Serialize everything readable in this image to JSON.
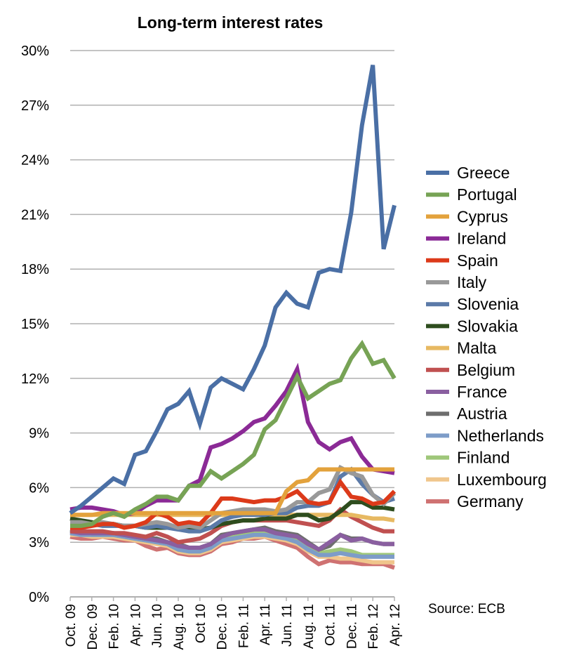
{
  "chart_data": {
    "type": "line",
    "title": "Long-term interest rates",
    "source_note": "Source: ECB",
    "ylim": [
      0,
      30
    ],
    "yticks": [
      0,
      3,
      6,
      9,
      12,
      15,
      18,
      21,
      24,
      27,
      30
    ],
    "ytick_labels": [
      "0%",
      "3%",
      "6%",
      "9%",
      "12%",
      "15%",
      "18%",
      "21%",
      "24%",
      "27%",
      "30%"
    ],
    "grid": "horizontal",
    "legend_position": "right",
    "x": [
      "Oct. 09",
      "Nov. 09",
      "Dec. 09",
      "Jan. 10",
      "Feb. 10",
      "Mar. 10",
      "Apr. 10",
      "May 10",
      "Jun. 10",
      "Jul. 10",
      "Aug. 10",
      "Sep. 10",
      "Oct. 10",
      "Nov. 10",
      "Dec. 10",
      "Jan. 11",
      "Feb. 11",
      "Mar. 11",
      "Apr. 11",
      "May 11",
      "Jun. 11",
      "Jul. 11",
      "Aug. 11",
      "Sep. 11",
      "Oct. 11",
      "Nov. 11",
      "Dec. 11",
      "Jan. 12",
      "Feb. 12",
      "Mar. 12",
      "Apr. 12"
    ],
    "xtick_labels": [
      "Oct. 09",
      "Dec. 09",
      "Feb. 10",
      "Apr. 10",
      "Jun. 10",
      "Aug. 10",
      "Oct 10",
      "Dec. 10",
      "Feb. 11",
      "Apr. 11",
      "Jun. 11",
      "Aug. 11",
      "Oct. 11",
      "Dec. 11",
      "Feb. 12",
      "Apr. 12"
    ],
    "series": [
      {
        "name": "Greece",
        "color": "#4a6fa5",
        "values": [
          4.6,
          5.0,
          5.5,
          6.0,
          6.5,
          6.2,
          7.8,
          8.0,
          9.1,
          10.3,
          10.6,
          11.3,
          9.5,
          11.5,
          12.0,
          11.7,
          11.4,
          12.5,
          13.8,
          15.9,
          16.7,
          16.1,
          15.9,
          17.8,
          18.0,
          17.9,
          21.1,
          25.9,
          29.2,
          19.1,
          21.5
        ]
      },
      {
        "name": "Portugal",
        "color": "#77a355",
        "values": [
          3.9,
          3.9,
          4.0,
          4.4,
          4.6,
          4.4,
          4.8,
          5.1,
          5.5,
          5.5,
          5.3,
          6.1,
          6.1,
          6.9,
          6.5,
          6.9,
          7.3,
          7.8,
          9.2,
          9.7,
          10.9,
          12.1,
          10.9,
          11.3,
          11.7,
          11.9,
          13.1,
          13.9,
          12.8,
          13.0,
          12.0
        ]
      },
      {
        "name": "Cyprus",
        "color": "#e3a23c",
        "values": [
          4.5,
          4.5,
          4.5,
          4.6,
          4.6,
          4.6,
          4.6,
          4.6,
          4.6,
          4.6,
          4.6,
          4.6,
          4.6,
          4.6,
          4.6,
          4.6,
          4.6,
          4.6,
          4.6,
          4.6,
          5.8,
          6.3,
          6.4,
          7.0,
          7.0,
          7.0,
          7.0,
          7.0,
          7.0,
          7.0,
          7.0
        ]
      },
      {
        "name": "Ireland",
        "color": "#8b2a96",
        "values": [
          4.8,
          4.9,
          4.9,
          4.8,
          4.7,
          4.5,
          4.6,
          5.0,
          5.3,
          5.3,
          5.3,
          6.1,
          6.4,
          8.2,
          8.4,
          8.7,
          9.1,
          9.6,
          9.8,
          10.5,
          11.3,
          12.5,
          9.6,
          8.5,
          8.1,
          8.5,
          8.7,
          7.7,
          7.0,
          6.9,
          6.8
        ]
      },
      {
        "name": "Spain",
        "color": "#dc3a1a",
        "values": [
          3.8,
          3.8,
          3.9,
          4.0,
          4.0,
          3.8,
          3.9,
          4.1,
          4.6,
          4.4,
          4.0,
          4.1,
          4.0,
          4.6,
          5.4,
          5.4,
          5.3,
          5.2,
          5.3,
          5.3,
          5.5,
          5.8,
          5.2,
          5.1,
          5.2,
          6.3,
          5.5,
          5.4,
          5.1,
          5.2,
          5.8
        ]
      },
      {
        "name": "Italy",
        "color": "#999999",
        "values": [
          4.1,
          4.1,
          4.0,
          4.1,
          4.0,
          3.9,
          3.9,
          4.0,
          4.1,
          4.0,
          3.8,
          3.9,
          3.8,
          4.2,
          4.6,
          4.7,
          4.8,
          4.8,
          4.8,
          4.7,
          4.8,
          5.2,
          5.2,
          5.7,
          5.9,
          7.1,
          6.8,
          6.6,
          5.6,
          5.1,
          5.7
        ]
      },
      {
        "name": "Slovenia",
        "color": "#5b7aa8",
        "values": [
          4.0,
          4.0,
          4.0,
          3.9,
          3.9,
          3.9,
          3.9,
          3.8,
          3.9,
          3.8,
          3.7,
          3.6,
          3.6,
          3.8,
          4.2,
          4.4,
          4.5,
          4.5,
          4.5,
          4.6,
          4.6,
          4.9,
          5.0,
          5.0,
          5.2,
          6.6,
          7.0,
          6.2,
          5.6,
          5.2,
          5.4
        ]
      },
      {
        "name": "Slovakia",
        "color": "#2e4d1e",
        "values": [
          4.3,
          4.2,
          4.1,
          4.0,
          4.0,
          3.9,
          3.9,
          3.8,
          3.8,
          3.8,
          3.8,
          3.7,
          3.7,
          3.8,
          4.0,
          4.1,
          4.2,
          4.2,
          4.3,
          4.3,
          4.3,
          4.5,
          4.5,
          4.2,
          4.3,
          4.7,
          5.2,
          5.2,
          4.9,
          4.9,
          4.8
        ]
      },
      {
        "name": "Malta",
        "color": "#e7b962",
        "values": [
          4.5,
          4.5,
          4.5,
          4.5,
          4.5,
          4.5,
          4.5,
          4.5,
          4.5,
          4.5,
          4.5,
          4.5,
          4.5,
          4.5,
          4.5,
          4.5,
          4.5,
          4.5,
          4.5,
          4.5,
          4.5,
          4.5,
          4.5,
          4.5,
          4.5,
          4.5,
          4.5,
          4.4,
          4.3,
          4.3,
          4.2
        ]
      },
      {
        "name": "Belgium",
        "color": "#c05050",
        "values": [
          3.6,
          3.6,
          3.6,
          3.6,
          3.5,
          3.5,
          3.4,
          3.3,
          3.5,
          3.3,
          3.0,
          3.1,
          3.2,
          3.5,
          3.9,
          4.1,
          4.2,
          4.2,
          4.2,
          4.2,
          4.2,
          4.1,
          4.0,
          3.9,
          4.2,
          4.8,
          4.4,
          4.1,
          3.8,
          3.6,
          3.6
        ]
      },
      {
        "name": "France",
        "color": "#8a5fa0",
        "values": [
          3.6,
          3.5,
          3.5,
          3.5,
          3.5,
          3.4,
          3.3,
          3.2,
          3.1,
          3.0,
          2.8,
          2.7,
          2.7,
          2.9,
          3.3,
          3.5,
          3.6,
          3.7,
          3.7,
          3.5,
          3.4,
          3.3,
          2.9,
          2.6,
          3.0,
          3.4,
          3.1,
          3.2,
          3.0,
          2.9,
          2.9
        ]
      },
      {
        "name": "Austria",
        "color": "#6e6e6e",
        "values": [
          3.7,
          3.6,
          3.5,
          3.5,
          3.5,
          3.4,
          3.3,
          3.2,
          3.2,
          3.0,
          2.9,
          2.7,
          2.7,
          2.9,
          3.4,
          3.5,
          3.6,
          3.7,
          3.8,
          3.6,
          3.5,
          3.4,
          3.0,
          2.6,
          2.8,
          3.4,
          3.2,
          3.2,
          3.0,
          2.9,
          2.9
        ]
      },
      {
        "name": "Netherlands",
        "color": "#7d9cc8",
        "values": [
          3.5,
          3.4,
          3.4,
          3.4,
          3.4,
          3.3,
          3.2,
          3.1,
          3.0,
          2.9,
          2.6,
          2.5,
          2.5,
          2.7,
          3.1,
          3.2,
          3.3,
          3.4,
          3.4,
          3.3,
          3.2,
          3.0,
          2.6,
          2.3,
          2.3,
          2.4,
          2.3,
          2.2,
          2.2,
          2.2,
          2.2
        ]
      },
      {
        "name": "Finland",
        "color": "#9fc77a",
        "values": [
          3.6,
          3.5,
          3.4,
          3.4,
          3.4,
          3.3,
          3.2,
          3.1,
          3.0,
          2.9,
          2.6,
          2.5,
          2.5,
          2.7,
          3.1,
          3.3,
          3.4,
          3.5,
          3.5,
          3.4,
          3.3,
          3.1,
          2.7,
          2.4,
          2.5,
          2.6,
          2.5,
          2.3,
          2.3,
          2.3,
          2.3
        ]
      },
      {
        "name": "Luxembourg",
        "color": "#f0c68c",
        "values": [
          3.4,
          3.4,
          3.3,
          3.3,
          3.3,
          3.2,
          3.1,
          3.0,
          2.9,
          2.8,
          2.5,
          2.4,
          2.4,
          2.6,
          3.0,
          3.1,
          3.2,
          3.3,
          3.3,
          3.2,
          3.1,
          2.9,
          2.5,
          2.2,
          2.2,
          2.1,
          2.1,
          2.0,
          1.9,
          1.9,
          1.9
        ]
      },
      {
        "name": "Germany",
        "color": "#cf7272",
        "values": [
          3.3,
          3.2,
          3.2,
          3.3,
          3.2,
          3.1,
          3.1,
          2.8,
          2.6,
          2.7,
          2.4,
          2.3,
          2.3,
          2.5,
          2.9,
          3.0,
          3.2,
          3.2,
          3.3,
          3.1,
          2.9,
          2.7,
          2.2,
          1.8,
          2.0,
          1.9,
          1.9,
          1.8,
          1.8,
          1.8,
          1.6
        ]
      }
    ]
  }
}
